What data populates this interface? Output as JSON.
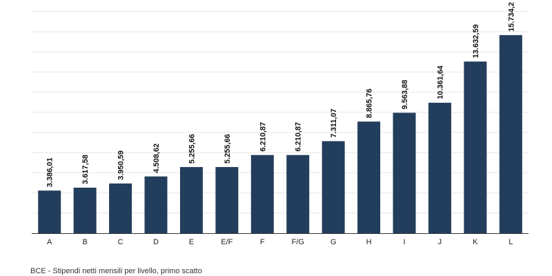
{
  "caption": "BCE - Stipendi netti mensili per livello, primo scatto",
  "colors": {
    "bar": "#233e5c",
    "grid": "#e6e6e6",
    "axis": "#333333",
    "background": "#ffffff"
  },
  "chart_data": {
    "type": "bar",
    "title": "",
    "xlabel": "",
    "ylabel": "",
    "categories": [
      "A",
      "B",
      "C",
      "D",
      "E",
      "E/F",
      "F",
      "F/G",
      "G",
      "H",
      "I",
      "J",
      "K",
      "L"
    ],
    "values": [
      3386.01,
      3617.58,
      3950.59,
      4508.62,
      5255.66,
      5255.66,
      6210.87,
      6210.87,
      7311.07,
      8865.76,
      9563.88,
      10361.64,
      13632.59,
      15734.2
    ],
    "value_labels": [
      "3.386,01",
      "3.617,58",
      "3.950,59",
      "4.508,62",
      "5.255,66",
      "5.255,66",
      "6.210,87",
      "6.210,87",
      "7.311,07",
      "8.865,76",
      "9.563,88",
      "10.361,64",
      "13.632,59",
      "15.734,2"
    ],
    "ylim": [
      0,
      16000
    ],
    "grid": true,
    "legend": "none"
  }
}
